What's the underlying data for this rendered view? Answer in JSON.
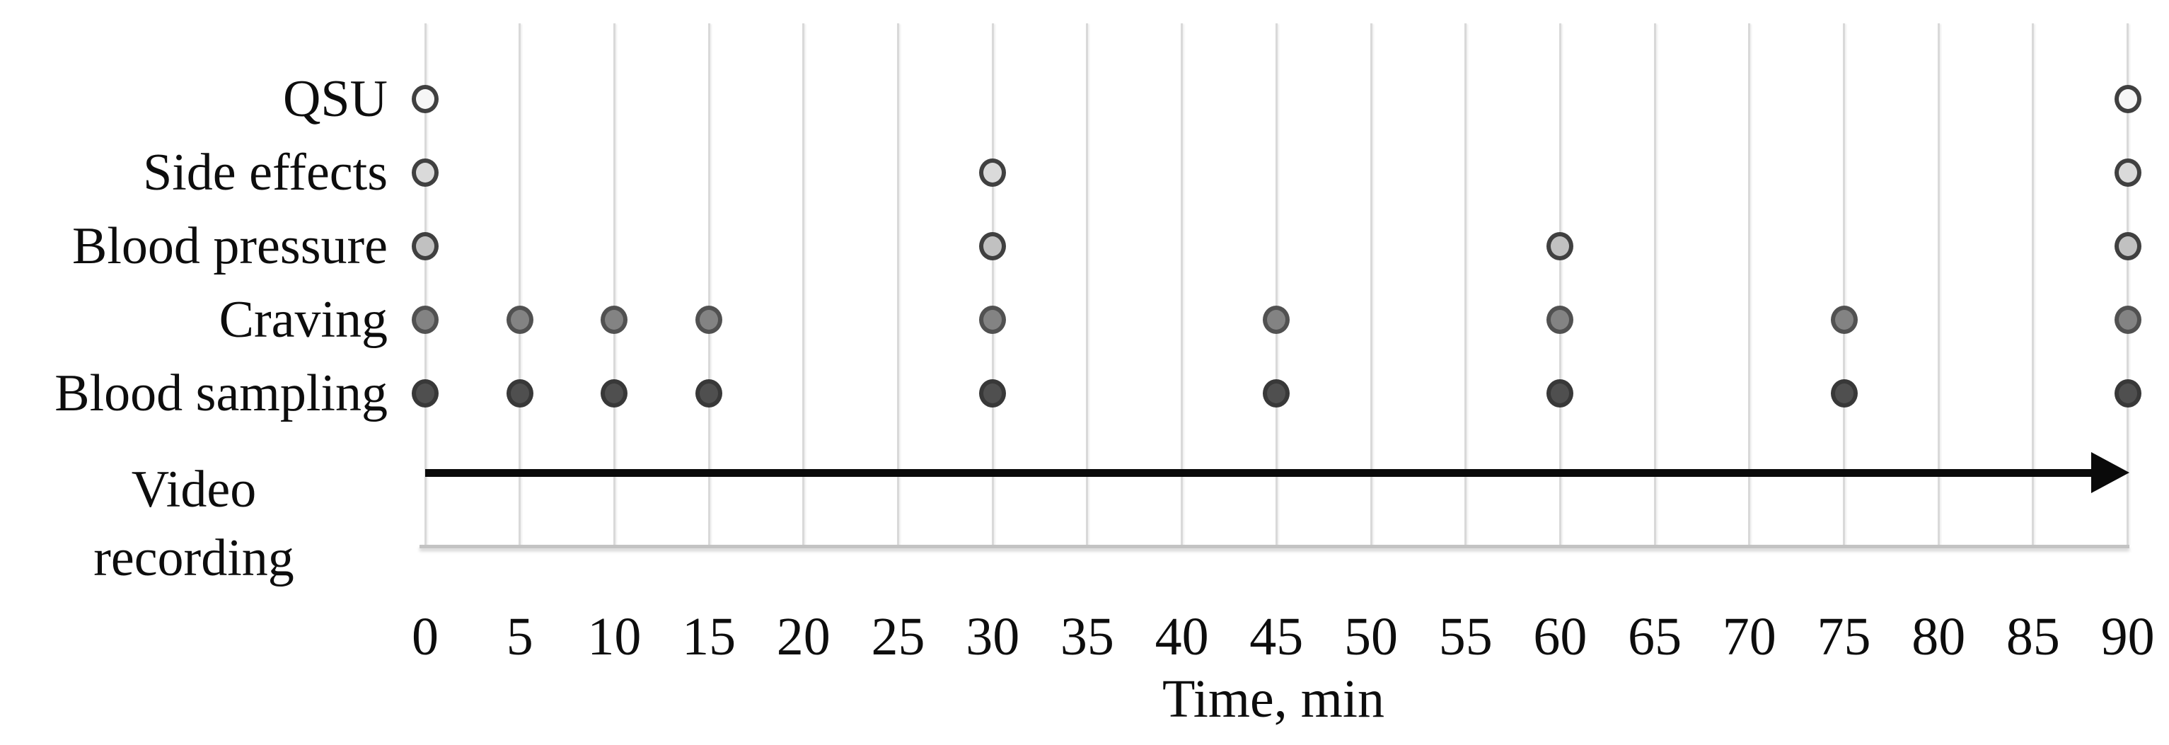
{
  "chart_data": {
    "type": "scatter",
    "title": "",
    "xlabel": "Time, min",
    "ylabel": "",
    "x_range": [
      0,
      90
    ],
    "x_tick_step": 5,
    "x_ticks": [
      0,
      5,
      10,
      15,
      20,
      25,
      30,
      35,
      40,
      45,
      50,
      55,
      60,
      65,
      70,
      75,
      80,
      85,
      90
    ],
    "grid": {
      "vertical_gridlines": true,
      "horizontal_gridlines": false,
      "gridline_color": "#d9d9d9",
      "axis_line_color": "#c3c3c3"
    },
    "legend": {
      "visible": false
    },
    "rows": [
      {
        "label": "QSU",
        "times": [
          0,
          90
        ],
        "marker_fill": "#f6f6f6",
        "marker_stroke": "#404040"
      },
      {
        "label": "Side effects",
        "times": [
          0,
          30,
          90
        ],
        "marker_fill": "#dadada",
        "marker_stroke": "#404040"
      },
      {
        "label": "Blood pressure",
        "times": [
          0,
          30,
          60,
          90
        ],
        "marker_fill": "#c1c1c1",
        "marker_stroke": "#404040"
      },
      {
        "label": "Craving",
        "times": [
          0,
          5,
          10,
          15,
          30,
          45,
          60,
          75,
          90
        ],
        "marker_fill": "#838383",
        "marker_stroke": "#515151"
      },
      {
        "label": "Blood sampling",
        "times": [
          0,
          5,
          10,
          15,
          30,
          45,
          60,
          75,
          90
        ],
        "marker_fill": "#4f4f4f",
        "marker_stroke": "#383838"
      }
    ],
    "timeline": {
      "label": "Video recording",
      "label_lines": [
        "Video",
        "recording"
      ],
      "start": 0,
      "end": 90,
      "style": "solid-arrow",
      "color": "#0a0a0a"
    }
  }
}
